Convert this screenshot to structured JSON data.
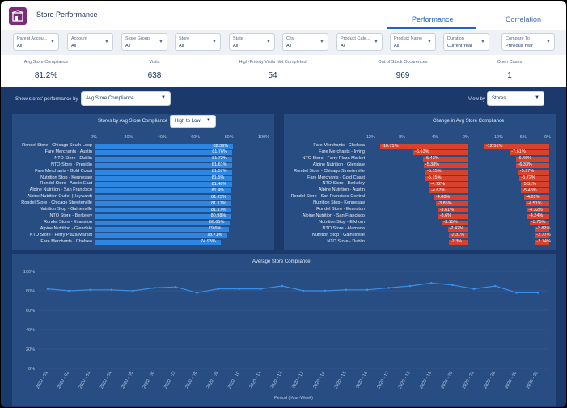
{
  "header": {
    "title": "Store Performance",
    "tabs": [
      "Performance",
      "Correlation"
    ],
    "active_tab": "Performance"
  },
  "filters": [
    {
      "label": "Parent Accou...",
      "value": "All"
    },
    {
      "label": "Account",
      "value": "All"
    },
    {
      "label": "Store Group",
      "value": "All"
    },
    {
      "label": "Store",
      "value": "All"
    },
    {
      "label": "State",
      "value": "All"
    },
    {
      "label": "City",
      "value": "All"
    },
    {
      "label": "Product Cate...",
      "value": "All"
    },
    {
      "label": "Product Name",
      "value": "All"
    },
    {
      "label": "Duration",
      "value": "Current Year"
    },
    {
      "label": "Compare To",
      "value": "Previous Year"
    }
  ],
  "kpis": [
    {
      "label": "Avg Store Compliance",
      "value": "81.2%"
    },
    {
      "label": "Visits",
      "value": "638"
    },
    {
      "label": "High-Priority Visits Not Completed",
      "value": "54"
    },
    {
      "label": "Out of Stock Occurences",
      "value": "969"
    },
    {
      "label": "Open Cases",
      "value": "1"
    }
  ],
  "controls": {
    "show_label": "Show stores' performance by",
    "show_value": "Avg Store Compliance",
    "viewby_label": "View by",
    "viewby_value": "Stores"
  },
  "colors": {
    "bar_blue": "#2f86e0",
    "bar_red": "#d6422e",
    "line": "#3b8fe8"
  },
  "compliance_chart": {
    "title": "Stores by Avg Store Compliance",
    "sort": "High to Low",
    "type": "bar",
    "x_ticks": [
      "0%",
      "20%",
      "40%",
      "60%",
      "80%",
      "100%"
    ],
    "categories": [
      "Rondel Store - Chicago South Loop",
      "Fare Merchants - Austin",
      "NTO Store - Dublin",
      "NTO Store - Presidio",
      "Fare Merchants - Gold Coast",
      "Nutrition Stop - Kennesaw",
      "Rondel Store - Austin East",
      "Alpine Nutrition - San Francisco",
      "Alpine Nutrition Outlet (Hayward)",
      "Rondel Store - Chicago Streeterville",
      "Nutrition Stop - Gainesville",
      "NTO Store - Berkeley",
      "Rondel Store - Evanston",
      "Alpine Nutrition - Glendale",
      "NTO Store - Ferry Plaza Market",
      "Fare Merchants - Chelsea"
    ],
    "values": [
      82.36,
      81.76,
      81.72,
      81.61,
      81.57,
      81.5,
      81.48,
      81.4,
      81.23,
      81.17,
      81.17,
      80.98,
      80.05,
      79.6,
      78.71,
      74.93
    ],
    "labels": [
      "82.36%",
      "81.76%",
      "81.72%",
      "81.61%",
      "81.57%",
      "81.5%",
      "81.48%",
      "81.4%",
      "81.23%",
      "81.17%",
      "81.17%",
      "80.98%",
      "80.05%",
      "79.6%",
      "78.71%",
      "74.93%"
    ]
  },
  "change_chart": {
    "title": "Change in Avg Store Compliance",
    "type": "bar",
    "x_ticks_a": [
      "-12%",
      "-8%",
      "-4%",
      "0%"
    ],
    "x_ticks_b": [
      "-10%",
      "-5%",
      "0%"
    ],
    "categories": [
      "Fare Merchants - Chelsea",
      "Fare Merchants - Irving",
      "NTO Store - Ferry Plaza Market",
      "Alpine Nutrition - Glendale",
      "Rondel Store - Chicago Streeterville",
      "Fare Merchants - Gold Coast",
      "NTO Store - Berkeley",
      "Alpine Nutrition - Austin",
      "Rondel Store - San Francisco Central",
      "Nutrition Stop - Kennesaw",
      "Rondel Store - Evanston",
      "Alpine Nutrition - San Francisco",
      "Nutrition Stop - Elkhorn",
      "NTO Store - Alameda",
      "Nutrition Stop - Gainesville",
      "NTO Store - Dublin"
    ],
    "series": [
      {
        "values": [
          -10.71,
          -6.63,
          -5.43,
          -5.38,
          -5.15,
          -5.15,
          -4.72,
          -4.67,
          -4.08,
          -3.85,
          -3.61,
          -3.6,
          -3.15,
          -2.42,
          -2.31,
          -2.3
        ],
        "labels": [
          "-10.71%",
          "-6.63%",
          "-5.43%",
          "-5.38%",
          "-5.15%",
          "-5.15%",
          "-4.72%",
          "-4.67%",
          "-4.08%",
          "-3.85%",
          "-3.61%",
          "-3.6%",
          "-3.15%",
          "-2.42%",
          "-2.31%",
          "-2.3%"
        ]
      },
      {
        "values": [
          -12.51,
          -7.61,
          -6.46,
          -6.33,
          -5.97,
          -5.72,
          -5.51,
          -5.43,
          -4.82,
          -4.51,
          -4.32,
          -4.24,
          -3.75,
          -2.82,
          -2.77,
          -2.74
        ],
        "labels": [
          "-12.51%",
          "-7.61%",
          "-6.46%",
          "-6.33%",
          "-5.97%",
          "-5.72%",
          "-5.51%",
          "-5.43%",
          "-4.82%",
          "-4.51%",
          "-4.32%",
          "-4.24%",
          "-3.75%",
          "-2.82%",
          "-2.77%",
          "-2.74%"
        ]
      }
    ]
  },
  "chart_data": {
    "type": "line",
    "title": "Average Store Compliance",
    "xlabel": "Period (Year-Week)",
    "ylabel": "",
    "ylim": [
      0,
      100
    ],
    "y_ticks": [
      "0%",
      "20%",
      "40%",
      "60%",
      "80%",
      "100%"
    ],
    "categories": [
      "2020 - 01",
      "2020 - 02",
      "2020 - 03",
      "2020 - 04",
      "2020 - 05",
      "2020 - 06",
      "2020 - 07",
      "2020 - 08",
      "2020 - 09",
      "2020 - 10",
      "2020 - 11",
      "2020 - 12",
      "2020 - 13",
      "2020 - 14",
      "2020 - 15",
      "2020 - 16",
      "2020 - 17",
      "2020 - 18",
      "2020 - 19",
      "2020 - 20",
      "2020 - 21",
      "2020 - 22",
      "2020 - 30",
      "2020 - 35"
    ],
    "values": [
      82,
      80,
      81,
      81,
      80,
      83,
      84,
      78,
      82,
      82,
      82,
      85,
      80,
      80,
      81,
      81,
      83,
      85,
      88,
      86,
      82,
      85,
      78,
      78
    ]
  }
}
